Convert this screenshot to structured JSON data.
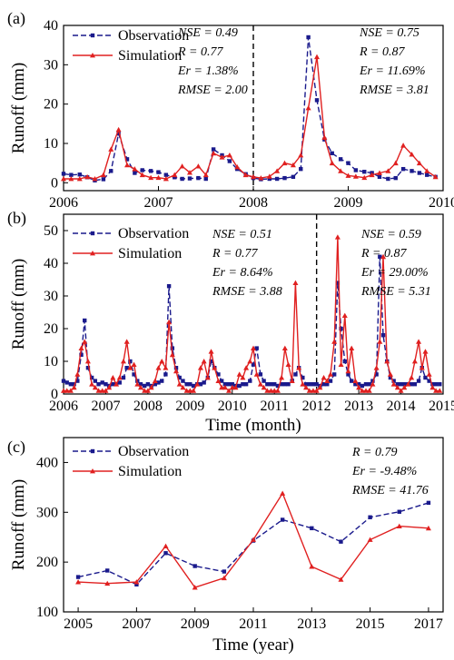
{
  "chart_data": [
    {
      "panel": "(a)",
      "type": "line",
      "ylabel": "Runoff (mm)",
      "xlim": [
        2006,
        2010
      ],
      "ylim": [
        -2,
        40
      ],
      "xticks": [
        2006,
        2007,
        2008,
        2009,
        2010
      ],
      "yticks": [
        0,
        10,
        20,
        30,
        40
      ],
      "divider": 2008,
      "legend": [
        "Observation",
        "Simulation"
      ],
      "stats": [
        [
          "NSE = 0.49",
          "R = 0.77",
          "Er = 1.38%",
          "RMSE = 2.00"
        ],
        [
          "NSE = 0.75",
          "R = 0.87",
          "Er = 11.69%",
          "RMSE = 3.81"
        ]
      ],
      "series": [
        {
          "name": "Observation",
          "color": "#1a1a8c",
          "style": "dashed",
          "marker": "square",
          "x": [
            2006.0,
            2006.08,
            2006.17,
            2006.25,
            2006.33,
            2006.42,
            2006.5,
            2006.58,
            2006.67,
            2006.75,
            2006.83,
            2006.92,
            2007.0,
            2007.08,
            2007.17,
            2007.25,
            2007.33,
            2007.42,
            2007.5,
            2007.58,
            2007.67,
            2007.75,
            2007.83,
            2007.92,
            2008.0,
            2008.08,
            2008.17,
            2008.25,
            2008.33,
            2008.42,
            2008.5,
            2008.58,
            2008.67,
            2008.75,
            2008.83,
            2008.92,
            2009.0,
            2009.08,
            2009.17,
            2009.25,
            2009.33,
            2009.42,
            2009.5,
            2009.58,
            2009.67,
            2009.75,
            2009.83,
            2009.92
          ],
          "y": [
            2.3,
            2.0,
            2.1,
            1.4,
            0.6,
            0.9,
            3.0,
            12.5,
            6.0,
            2.5,
            3.2,
            3.0,
            2.7,
            2.0,
            1.4,
            1.0,
            1.1,
            1.2,
            1.0,
            8.5,
            7.0,
            5.5,
            3.5,
            2.2,
            1.2,
            0.9,
            1.0,
            1.0,
            1.2,
            1.5,
            3.5,
            37.0,
            21.0,
            11.0,
            7.5,
            6.0,
            5.0,
            3.2,
            2.8,
            2.5,
            1.5,
            1.0,
            1.2,
            3.5,
            3.0,
            2.5,
            2.0,
            1.5
          ]
        },
        {
          "name": "Simulation",
          "color": "#e02020",
          "style": "solid",
          "marker": "triangle",
          "x": [
            2006.0,
            2006.08,
            2006.17,
            2006.25,
            2006.33,
            2006.42,
            2006.5,
            2006.58,
            2006.67,
            2006.75,
            2006.83,
            2006.92,
            2007.0,
            2007.08,
            2007.17,
            2007.25,
            2007.33,
            2007.42,
            2007.5,
            2007.58,
            2007.67,
            2007.75,
            2007.83,
            2007.92,
            2008.0,
            2008.08,
            2008.17,
            2008.25,
            2008.33,
            2008.42,
            2008.5,
            2008.58,
            2008.67,
            2008.75,
            2008.83,
            2008.92,
            2009.0,
            2009.08,
            2009.17,
            2009.25,
            2009.33,
            2009.42,
            2009.5,
            2009.58,
            2009.67,
            2009.75,
            2009.83,
            2009.92
          ],
          "y": [
            1.0,
            1.0,
            1.0,
            1.5,
            1.0,
            2.0,
            8.5,
            13.5,
            4.5,
            3.5,
            2.0,
            1.3,
            1.3,
            1.0,
            2.0,
            4.2,
            2.6,
            4.2,
            2.0,
            7.5,
            6.5,
            7.0,
            4.0,
            2.0,
            1.5,
            1.2,
            1.6,
            3.0,
            5.0,
            4.5,
            7.0,
            19.0,
            32.0,
            11.5,
            5.0,
            3.0,
            1.8,
            1.6,
            1.3,
            2.0,
            2.5,
            3.0,
            5.0,
            9.5,
            7.2,
            5.0,
            3.0,
            1.5
          ]
        }
      ]
    },
    {
      "panel": "(b)",
      "type": "line",
      "xlabel": "Time (month)",
      "ylabel": "Runoff (mm)",
      "xlim": [
        2006,
        2015
      ],
      "ylim": [
        0,
        55
      ],
      "xticks": [
        2006,
        2007,
        2008,
        2009,
        2010,
        2011,
        2012,
        2013,
        2014,
        2015
      ],
      "yticks": [
        0,
        10,
        20,
        30,
        40,
        50
      ],
      "divider": 2012,
      "legend": [
        "Observation",
        "Simulation"
      ],
      "stats": [
        [
          "NSE = 0.51",
          "R = 0.77",
          "Er = 8.64%",
          "RMSE = 3.88"
        ],
        [
          "NSE = 0.59",
          "R = 0.87",
          "Er = 29.00%",
          "RMSE = 5.31"
        ]
      ],
      "series": [
        {
          "name": "Observation",
          "color": "#1a1a8c",
          "style": "dashed",
          "marker": "square",
          "x": [
            2006.0,
            2006.08,
            2006.17,
            2006.25,
            2006.33,
            2006.42,
            2006.5,
            2006.58,
            2006.67,
            2006.75,
            2006.83,
            2006.92,
            2007.0,
            2007.08,
            2007.17,
            2007.25,
            2007.33,
            2007.42,
            2007.5,
            2007.58,
            2007.67,
            2007.75,
            2007.83,
            2007.92,
            2008.0,
            2008.08,
            2008.17,
            2008.25,
            2008.33,
            2008.42,
            2008.5,
            2008.58,
            2008.67,
            2008.75,
            2008.83,
            2008.92,
            2009.0,
            2009.08,
            2009.17,
            2009.25,
            2009.33,
            2009.42,
            2009.5,
            2009.58,
            2009.67,
            2009.75,
            2009.83,
            2009.92,
            2010.0,
            2010.08,
            2010.17,
            2010.25,
            2010.33,
            2010.42,
            2010.5,
            2010.58,
            2010.67,
            2010.75,
            2010.83,
            2010.92,
            2011.0,
            2011.08,
            2011.17,
            2011.25,
            2011.33,
            2011.42,
            2011.5,
            2011.58,
            2011.67,
            2011.75,
            2011.83,
            2011.92,
            2012.0,
            2012.08,
            2012.17,
            2012.25,
            2012.33,
            2012.42,
            2012.5,
            2012.58,
            2012.67,
            2012.75,
            2012.83,
            2012.92,
            2013.0,
            2013.08,
            2013.17,
            2013.25,
            2013.33,
            2013.42,
            2013.5,
            2013.58,
            2013.67,
            2013.75,
            2013.83,
            2013.92,
            2014.0,
            2014.08,
            2014.17,
            2014.25,
            2014.33,
            2014.42,
            2014.5,
            2014.58,
            2014.67,
            2014.75,
            2014.83,
            2014.92
          ],
          "y": [
            4,
            3.5,
            3,
            3,
            4,
            12,
            22.5,
            8,
            5,
            4,
            3,
            3.5,
            3,
            2.5,
            3,
            3,
            3.5,
            5,
            8,
            10,
            6,
            4,
            3,
            2.5,
            3,
            2.5,
            3,
            3.5,
            4,
            6,
            33,
            14,
            8,
            5,
            4,
            3,
            3,
            2.5,
            3,
            3,
            3.5,
            5,
            10,
            8,
            6,
            4,
            3,
            3,
            3,
            2.5,
            2.5,
            3,
            3,
            4,
            9,
            14,
            6,
            4,
            3,
            3,
            3,
            2.5,
            3,
            3,
            3,
            4,
            6,
            8,
            5,
            3,
            3,
            3,
            3,
            2.5,
            3,
            3,
            4,
            6,
            34,
            20,
            10,
            6,
            4,
            3,
            3,
            2.5,
            3,
            3,
            4,
            6,
            42,
            18,
            10,
            5,
            4,
            3,
            3,
            3,
            3,
            3,
            3,
            4,
            8,
            5,
            4,
            3,
            3,
            3
          ]
        },
        {
          "name": "Simulation",
          "color": "#e02020",
          "style": "solid",
          "marker": "triangle",
          "x": [
            2006.0,
            2006.08,
            2006.17,
            2006.25,
            2006.33,
            2006.42,
            2006.5,
            2006.58,
            2006.67,
            2006.75,
            2006.83,
            2006.92,
            2007.0,
            2007.08,
            2007.17,
            2007.25,
            2007.33,
            2007.42,
            2007.5,
            2007.58,
            2007.67,
            2007.75,
            2007.83,
            2007.92,
            2008.0,
            2008.08,
            2008.17,
            2008.25,
            2008.33,
            2008.42,
            2008.5,
            2008.58,
            2008.67,
            2008.75,
            2008.83,
            2008.92,
            2009.0,
            2009.08,
            2009.17,
            2009.25,
            2009.33,
            2009.42,
            2009.5,
            2009.58,
            2009.67,
            2009.75,
            2009.83,
            2009.92,
            2010.0,
            2010.08,
            2010.17,
            2010.25,
            2010.33,
            2010.42,
            2010.5,
            2010.58,
            2010.67,
            2010.75,
            2010.83,
            2010.92,
            2011.0,
            2011.08,
            2011.17,
            2011.25,
            2011.33,
            2011.42,
            2011.5,
            2011.58,
            2011.67,
            2011.75,
            2011.83,
            2011.92,
            2012.0,
            2012.08,
            2012.17,
            2012.25,
            2012.33,
            2012.42,
            2012.5,
            2012.58,
            2012.67,
            2012.75,
            2012.83,
            2012.92,
            2013.0,
            2013.08,
            2013.17,
            2013.25,
            2013.33,
            2013.42,
            2013.5,
            2013.58,
            2013.67,
            2013.75,
            2013.83,
            2013.92,
            2014.0,
            2014.08,
            2014.17,
            2014.25,
            2014.33,
            2014.42,
            2014.5,
            2014.58,
            2014.67,
            2014.75,
            2014.83,
            2014.92
          ],
          "y": [
            1,
            1,
            1,
            2,
            6,
            14,
            16,
            10,
            3,
            2,
            1,
            1,
            1,
            2,
            5,
            3,
            5,
            10,
            16,
            8,
            9,
            3,
            2,
            1,
            1,
            2,
            4,
            8,
            10,
            8,
            22,
            12,
            7,
            3,
            2,
            1,
            1,
            1,
            3,
            8,
            10,
            5,
            13,
            8,
            4,
            2,
            2,
            1,
            2,
            2,
            6,
            5,
            8,
            10,
            14,
            6,
            3,
            2,
            1,
            1,
            1,
            1,
            5,
            14,
            9,
            4,
            34,
            8,
            3,
            2,
            1,
            1,
            1,
            2,
            5,
            4,
            6,
            16,
            48,
            9,
            24,
            7,
            14,
            4,
            2,
            1,
            1,
            1,
            3,
            8,
            16,
            42,
            10,
            6,
            3,
            2,
            1,
            2,
            3,
            5,
            10,
            16,
            8,
            13,
            6,
            2,
            1,
            1
          ]
        }
      ]
    },
    {
      "panel": "(c)",
      "type": "line",
      "xlabel": "Time (year)",
      "ylabel": "Runoff (mm)",
      "xlim": [
        2004.5,
        2017.5
      ],
      "ylim": [
        100,
        450
      ],
      "xticks": [
        2005,
        2007,
        2009,
        2011,
        2013,
        2015,
        2017
      ],
      "yticks": [
        100,
        200,
        300,
        400
      ],
      "legend": [
        "Observation",
        "Simulation"
      ],
      "stats": [
        [
          "R = 0.79",
          "Er = -9.48%",
          "RMSE = 41.76"
        ]
      ],
      "series": [
        {
          "name": "Observation",
          "color": "#1a1a8c",
          "style": "dashed",
          "marker": "square",
          "x": [
            2005,
            2006,
            2007,
            2008,
            2009,
            2010,
            2011,
            2012,
            2013,
            2014,
            2015,
            2016,
            2017
          ],
          "y": [
            170,
            183,
            155,
            218,
            192,
            181,
            243,
            285,
            268,
            241,
            290,
            301,
            319
          ]
        },
        {
          "name": "Simulation",
          "color": "#e02020",
          "style": "solid",
          "marker": "triangle",
          "x": [
            2005,
            2006,
            2007,
            2008,
            2009,
            2010,
            2011,
            2012,
            2013,
            2014,
            2015,
            2016,
            2017
          ],
          "y": [
            160,
            157,
            160,
            232,
            149,
            168,
            245,
            338,
            191,
            165,
            245,
            272,
            268
          ]
        }
      ]
    }
  ]
}
